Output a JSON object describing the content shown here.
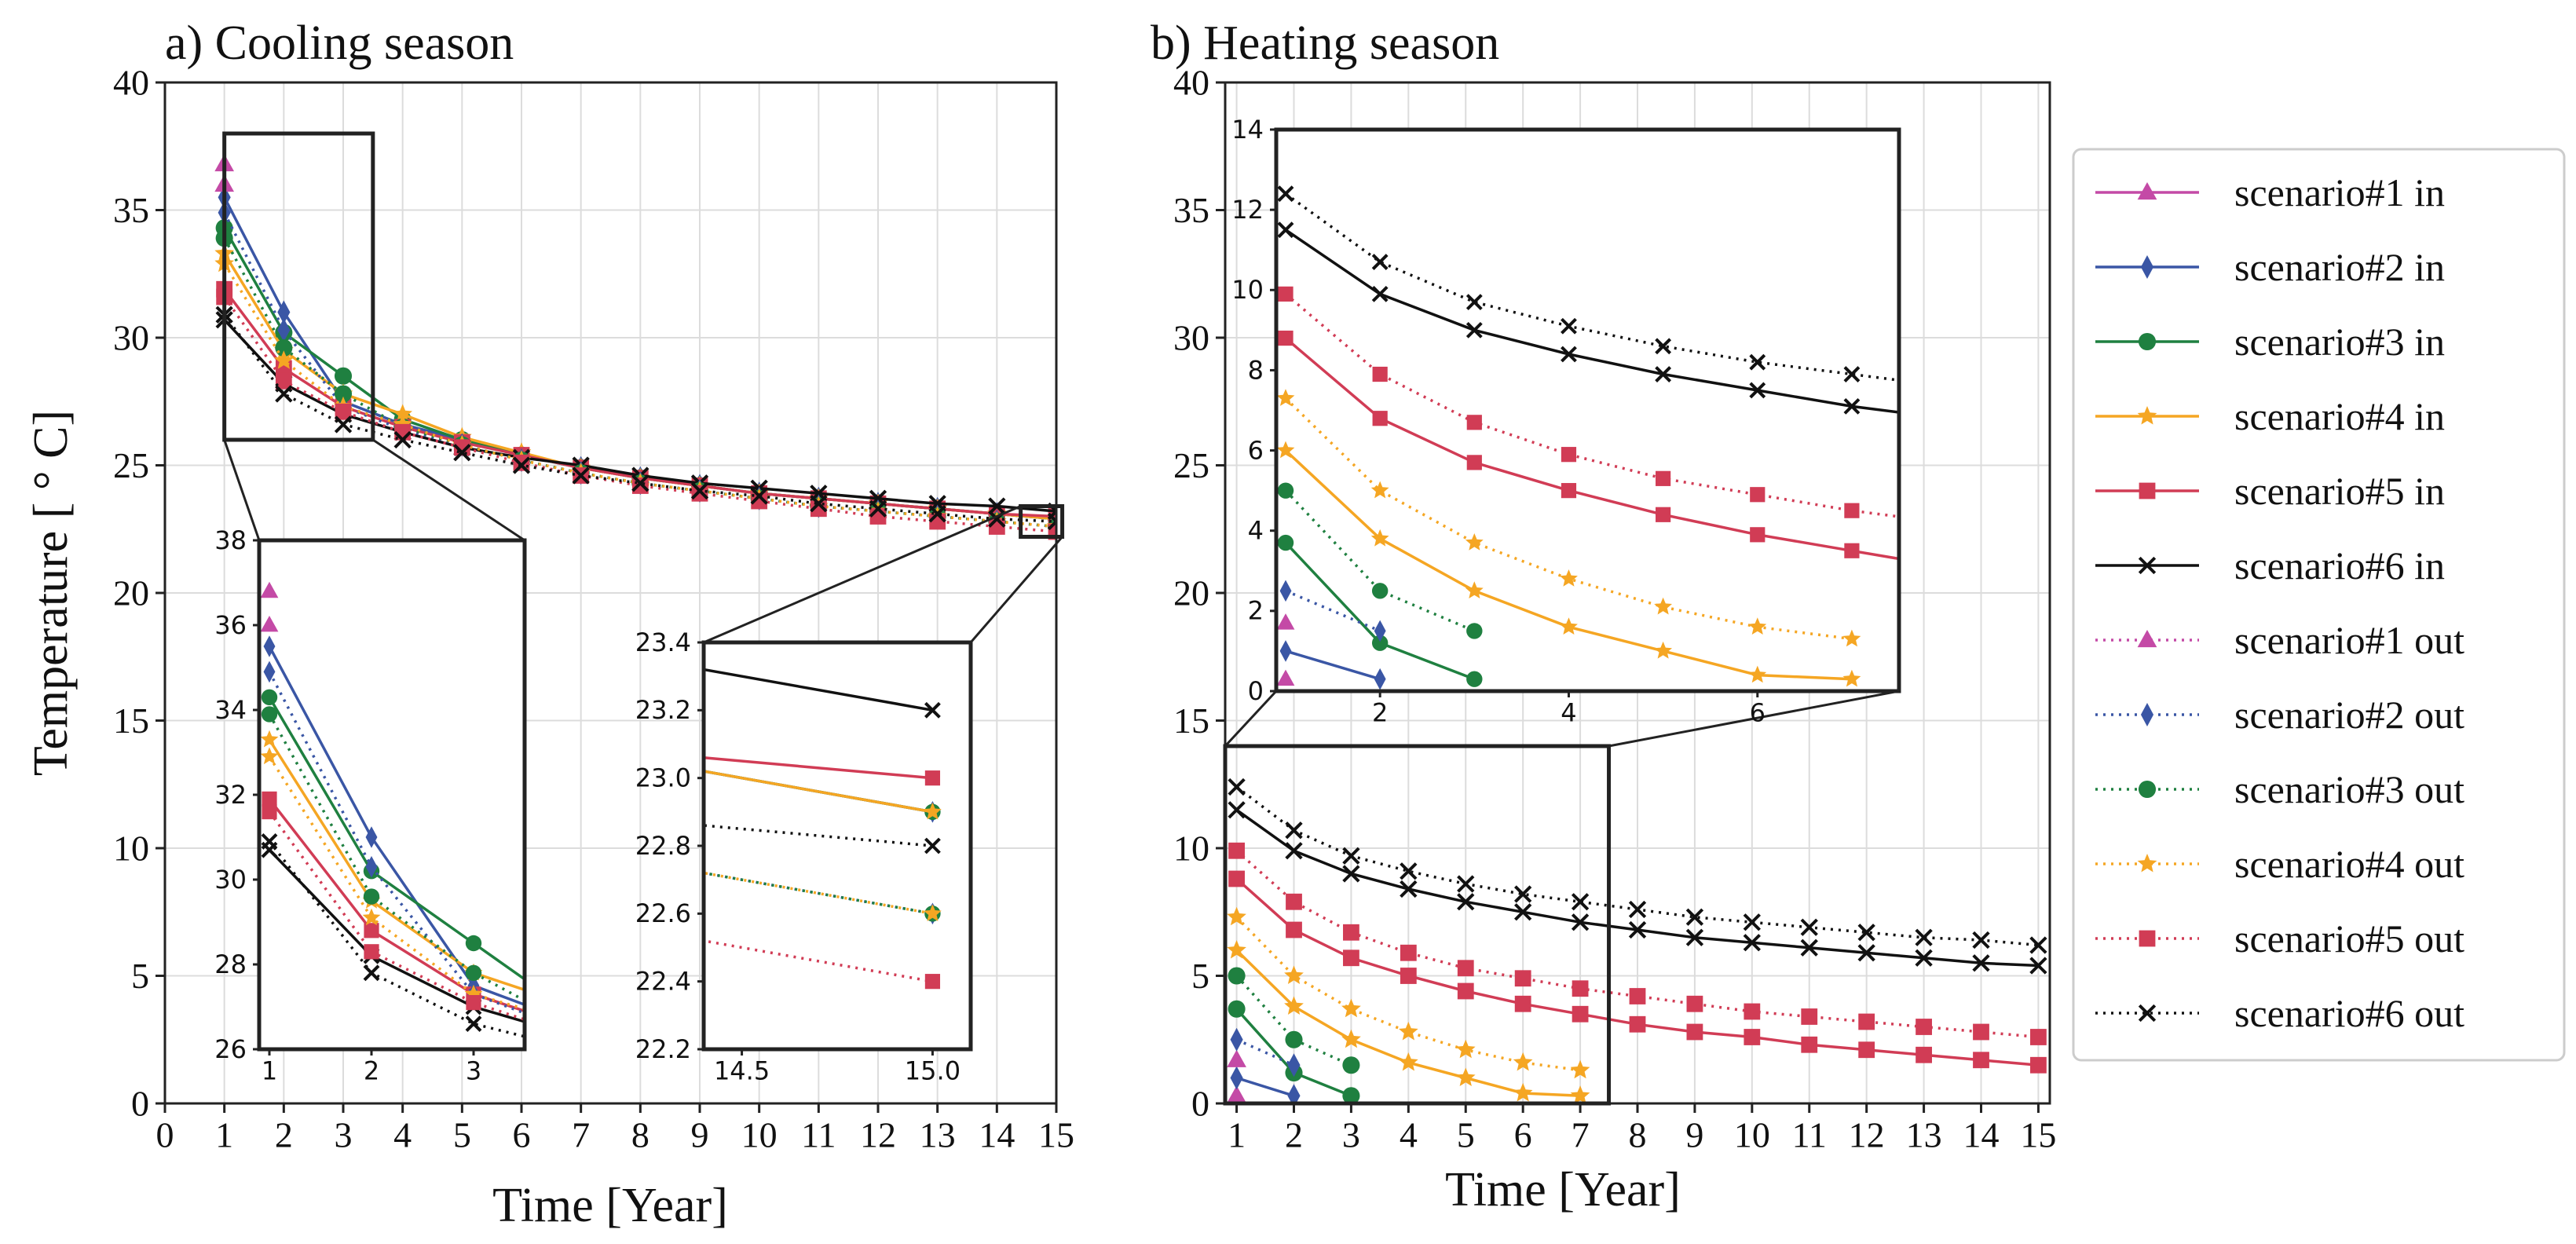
{
  "colors": {
    "s1": "#c44aa6",
    "s2": "#3a56a5",
    "s3": "#1f8040",
    "s4": "#f5a623",
    "s5": "#d13c55",
    "s6": "#111111"
  },
  "chart_data": [
    {
      "id": "cooling",
      "type": "line",
      "title": "a) Cooling season",
      "xlabel": "Time [Year]",
      "ylabel": "Temperature [ ° C]",
      "xlim": [
        0,
        15
      ],
      "ylim": [
        0,
        40
      ],
      "xticks": [
        0,
        1,
        2,
        3,
        4,
        5,
        6,
        7,
        8,
        9,
        10,
        11,
        12,
        13,
        14,
        15
      ],
      "yticks": [
        0,
        5,
        10,
        15,
        20,
        25,
        30,
        35,
        40
      ],
      "grid": true,
      "series": [
        {
          "name": "scenario#1 in",
          "color_key": "s1",
          "marker": "triangle",
          "dash": false,
          "x": [
            1
          ],
          "y": [
            36.8
          ]
        },
        {
          "name": "scenario#2 in",
          "color_key": "s2",
          "marker": "diamond",
          "dash": false,
          "x": [
            1,
            2,
            3,
            4,
            5,
            6,
            7,
            8,
            9,
            10,
            11,
            12,
            13,
            14,
            15
          ],
          "y": [
            35.5,
            31.0,
            27.5,
            26.6,
            26.0,
            25.4,
            24.9,
            24.5,
            24.2,
            23.9,
            23.7,
            23.5,
            23.3,
            23.1,
            22.9
          ]
        },
        {
          "name": "scenario#3 in",
          "color_key": "s3",
          "marker": "circle",
          "dash": false,
          "x": [
            1,
            2,
            3,
            4,
            5,
            6,
            7,
            8,
            9,
            10,
            11,
            12,
            13,
            14,
            15
          ],
          "y": [
            34.3,
            30.2,
            28.5,
            26.8,
            26.0,
            25.4,
            24.9,
            24.5,
            24.2,
            23.9,
            23.7,
            23.5,
            23.3,
            23.1,
            22.9
          ]
        },
        {
          "name": "scenario#4 in",
          "color_key": "s4",
          "marker": "star",
          "dash": false,
          "x": [
            1,
            2,
            3,
            4,
            5,
            6,
            7,
            8,
            9,
            10,
            11,
            12,
            13,
            14,
            15
          ],
          "y": [
            33.3,
            29.5,
            27.8,
            27.0,
            26.1,
            25.5,
            24.9,
            24.5,
            24.2,
            23.9,
            23.7,
            23.5,
            23.3,
            23.1,
            22.9
          ]
        },
        {
          "name": "scenario#5 in",
          "color_key": "s5",
          "marker": "square",
          "dash": false,
          "x": [
            1,
            2,
            3,
            4,
            5,
            6,
            7,
            8,
            9,
            10,
            11,
            12,
            13,
            14,
            15
          ],
          "y": [
            31.9,
            28.8,
            27.3,
            26.5,
            25.9,
            25.4,
            24.9,
            24.5,
            24.2,
            23.9,
            23.7,
            23.5,
            23.3,
            23.1,
            23.0
          ]
        },
        {
          "name": "scenario#6 in",
          "color_key": "s6",
          "marker": "x",
          "dash": false,
          "x": [
            1,
            2,
            3,
            4,
            5,
            6,
            7,
            8,
            9,
            10,
            11,
            12,
            13,
            14,
            15
          ],
          "y": [
            30.7,
            28.2,
            27.0,
            26.3,
            25.7,
            25.3,
            25.0,
            24.6,
            24.3,
            24.1,
            23.9,
            23.7,
            23.5,
            23.4,
            23.2
          ]
        },
        {
          "name": "scenario#1 out",
          "color_key": "s1",
          "marker": "triangle",
          "dash": true,
          "x": [
            1
          ],
          "y": [
            36.0
          ]
        },
        {
          "name": "scenario#2 out",
          "color_key": "s2",
          "marker": "diamond",
          "dash": true,
          "x": [
            1,
            2,
            3,
            4,
            5,
            6,
            7,
            8,
            9,
            10,
            11,
            12,
            13,
            14,
            15
          ],
          "y": [
            34.9,
            30.3,
            27.3,
            26.4,
            25.8,
            25.2,
            24.7,
            24.3,
            24.0,
            23.7,
            23.4,
            23.2,
            23.0,
            22.8,
            22.6
          ]
        },
        {
          "name": "scenario#3 out",
          "color_key": "s3",
          "marker": "circle",
          "dash": true,
          "x": [
            1,
            2,
            3,
            4,
            5,
            6,
            7,
            8,
            9,
            10,
            11,
            12,
            13,
            14,
            15
          ],
          "y": [
            33.9,
            29.6,
            27.8,
            26.5,
            25.8,
            25.2,
            24.7,
            24.3,
            24.0,
            23.7,
            23.4,
            23.2,
            23.0,
            22.8,
            22.6
          ]
        },
        {
          "name": "scenario#4 out",
          "color_key": "s4",
          "marker": "star",
          "dash": true,
          "x": [
            1,
            2,
            3,
            4,
            5,
            6,
            7,
            8,
            9,
            10,
            11,
            12,
            13,
            14,
            15
          ],
          "y": [
            32.9,
            29.1,
            27.3,
            26.6,
            25.8,
            25.2,
            24.7,
            24.3,
            24.0,
            23.7,
            23.4,
            23.2,
            23.0,
            22.8,
            22.6
          ]
        },
        {
          "name": "scenario#5 out",
          "color_key": "s5",
          "marker": "square",
          "dash": true,
          "x": [
            1,
            2,
            3,
            4,
            5,
            6,
            7,
            8,
            9,
            10,
            11,
            12,
            13,
            14,
            15
          ],
          "y": [
            31.6,
            28.3,
            27.1,
            26.3,
            25.7,
            25.1,
            24.6,
            24.2,
            23.9,
            23.6,
            23.3,
            23.0,
            22.8,
            22.6,
            22.4
          ]
        },
        {
          "name": "scenario#6 out",
          "color_key": "s6",
          "marker": "x",
          "dash": true,
          "x": [
            1,
            2,
            3,
            4,
            5,
            6,
            7,
            8,
            9,
            10,
            11,
            12,
            13,
            14,
            15
          ],
          "y": [
            30.9,
            27.8,
            26.6,
            26.0,
            25.5,
            25.0,
            24.6,
            24.3,
            24.0,
            23.8,
            23.5,
            23.3,
            23.1,
            22.9,
            22.8
          ]
        }
      ],
      "insets": [
        {
          "id": "cool-zoom1",
          "xlim": [
            0.9,
            3.5
          ],
          "ylim": [
            26,
            38
          ],
          "xticks": [
            1,
            2,
            3
          ],
          "yticks": [
            26,
            28,
            30,
            32,
            34,
            36,
            38
          ],
          "src_x": [
            1,
            3.5
          ],
          "src_y": [
            26,
            38
          ]
        },
        {
          "id": "cool-zoom2",
          "xlim": [
            14.4,
            15.1
          ],
          "ylim": [
            22.2,
            23.4
          ],
          "xticks": [
            14.5,
            15.0
          ],
          "xtick_labels": [
            "14.5",
            "15.0"
          ],
          "yticks": [
            22.2,
            22.4,
            22.6,
            22.8,
            23.0,
            23.2,
            23.4
          ],
          "ytick_labels": [
            "22.2",
            "22.4",
            "22.6",
            "22.8",
            "23.0",
            "23.2",
            "23.4"
          ],
          "src_x": [
            14.4,
            15.1
          ],
          "src_y": [
            22.2,
            23.4
          ]
        }
      ]
    },
    {
      "id": "heating",
      "type": "line",
      "title": "b) Heating season",
      "xlabel": "Time [Year]",
      "ylabel": "",
      "xlim": [
        0.8,
        15.2
      ],
      "ylim": [
        0,
        40
      ],
      "xticks": [
        1,
        2,
        3,
        4,
        5,
        6,
        7,
        8,
        9,
        10,
        11,
        12,
        13,
        14,
        15
      ],
      "yticks": [
        0,
        5,
        10,
        15,
        20,
        25,
        30,
        35,
        40
      ],
      "grid": true,
      "series": [
        {
          "name": "scenario#1 in",
          "color_key": "s1",
          "marker": "triangle",
          "dash": false,
          "x": [
            1
          ],
          "y": [
            0.3
          ]
        },
        {
          "name": "scenario#2 in",
          "color_key": "s2",
          "marker": "diamond",
          "dash": false,
          "x": [
            1,
            2
          ],
          "y": [
            1.0,
            0.3
          ]
        },
        {
          "name": "scenario#3 in",
          "color_key": "s3",
          "marker": "circle",
          "dash": false,
          "x": [
            1,
            2,
            3
          ],
          "y": [
            3.7,
            1.2,
            0.3
          ]
        },
        {
          "name": "scenario#4 in",
          "color_key": "s4",
          "marker": "star",
          "dash": false,
          "x": [
            1,
            2,
            3,
            4,
            5,
            6,
            7
          ],
          "y": [
            6.0,
            3.8,
            2.5,
            1.6,
            1.0,
            0.4,
            0.3
          ]
        },
        {
          "name": "scenario#5 in",
          "color_key": "s5",
          "marker": "square",
          "dash": false,
          "x": [
            1,
            2,
            3,
            4,
            5,
            6,
            7,
            8,
            9,
            10,
            11,
            12,
            13,
            14,
            15
          ],
          "y": [
            8.8,
            6.8,
            5.7,
            5.0,
            4.4,
            3.9,
            3.5,
            3.1,
            2.8,
            2.6,
            2.3,
            2.1,
            1.9,
            1.7,
            1.5
          ]
        },
        {
          "name": "scenario#6 in",
          "color_key": "s6",
          "marker": "x",
          "dash": false,
          "x": [
            1,
            2,
            3,
            4,
            5,
            6,
            7,
            8,
            9,
            10,
            11,
            12,
            13,
            14,
            15
          ],
          "y": [
            11.5,
            9.9,
            9.0,
            8.4,
            7.9,
            7.5,
            7.1,
            6.8,
            6.5,
            6.3,
            6.1,
            5.9,
            5.7,
            5.5,
            5.4
          ]
        },
        {
          "name": "scenario#1 out",
          "color_key": "s1",
          "marker": "triangle",
          "dash": true,
          "x": [
            1
          ],
          "y": [
            1.7
          ]
        },
        {
          "name": "scenario#2 out",
          "color_key": "s2",
          "marker": "diamond",
          "dash": true,
          "x": [
            1,
            2
          ],
          "y": [
            2.5,
            1.5
          ]
        },
        {
          "name": "scenario#3 out",
          "color_key": "s3",
          "marker": "circle",
          "dash": true,
          "x": [
            1,
            2,
            3
          ],
          "y": [
            5.0,
            2.5,
            1.5
          ]
        },
        {
          "name": "scenario#4 out",
          "color_key": "s4",
          "marker": "star",
          "dash": true,
          "x": [
            1,
            2,
            3,
            4,
            5,
            6,
            7
          ],
          "y": [
            7.3,
            5.0,
            3.7,
            2.8,
            2.1,
            1.6,
            1.3
          ]
        },
        {
          "name": "scenario#5 out",
          "color_key": "s5",
          "marker": "square",
          "dash": true,
          "x": [
            1,
            2,
            3,
            4,
            5,
            6,
            7,
            8,
            9,
            10,
            11,
            12,
            13,
            14,
            15
          ],
          "y": [
            9.9,
            7.9,
            6.7,
            5.9,
            5.3,
            4.9,
            4.5,
            4.2,
            3.9,
            3.6,
            3.4,
            3.2,
            3.0,
            2.8,
            2.6
          ]
        },
        {
          "name": "scenario#6 out",
          "color_key": "s6",
          "marker": "x",
          "dash": true,
          "x": [
            1,
            2,
            3,
            4,
            5,
            6,
            7,
            8,
            9,
            10,
            11,
            12,
            13,
            14,
            15
          ],
          "y": [
            12.4,
            10.7,
            9.7,
            9.1,
            8.6,
            8.2,
            7.9,
            7.6,
            7.3,
            7.1,
            6.9,
            6.7,
            6.5,
            6.4,
            6.2
          ]
        }
      ],
      "insets": [
        {
          "id": "heat-zoom",
          "xlim": [
            0.9,
            7.5
          ],
          "ylim": [
            0,
            14
          ],
          "xticks": [
            2,
            4,
            6
          ],
          "yticks": [
            0,
            2,
            4,
            6,
            8,
            10,
            12,
            14
          ],
          "src_x": [
            0.8,
            7.5
          ],
          "src_y": [
            0,
            14
          ]
        }
      ]
    }
  ],
  "legend": {
    "entries": [
      "scenario#1 in",
      "scenario#2 in",
      "scenario#3 in",
      "scenario#4 in",
      "scenario#5 in",
      "scenario#6 in",
      "scenario#1 out",
      "scenario#2 out",
      "scenario#3 out",
      "scenario#4 out",
      "scenario#5 out",
      "scenario#6 out"
    ]
  }
}
